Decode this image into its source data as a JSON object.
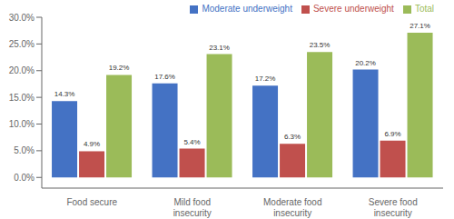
{
  "chart_data": {
    "type": "bar",
    "categories": [
      "Food secure",
      "Mild food\ninsecurity",
      "Moderate food\ninsecurity",
      "Severe food\ninsecurity"
    ],
    "series": [
      {
        "name": "Moderate underweight",
        "color": "#4472C4",
        "values": [
          0.143,
          0.176,
          0.172,
          0.202
        ],
        "value_labels": [
          "14.3%",
          "17.6%",
          "17.2%",
          "20.2%"
        ]
      },
      {
        "name": "Severe underweight",
        "color": "#C0504D",
        "values": [
          0.049,
          0.054,
          0.063,
          0.069
        ],
        "value_labels": [
          "4.9%",
          "5.4%",
          "6.3%",
          "6.9%"
        ]
      },
      {
        "name": "Total",
        "color": "#9BBB59",
        "values": [
          0.192,
          0.231,
          0.235,
          0.271
        ],
        "value_labels": [
          "19.2%",
          "23.1%",
          "23.5%",
          "27.1%"
        ]
      }
    ],
    "ylim": [
      -0.02,
      0.3
    ],
    "yticks": [
      {
        "value": 0.0,
        "label": "0.0%"
      },
      {
        "value": 0.05,
        "label": "5.0%"
      },
      {
        "value": 0.1,
        "label": "10.0%"
      },
      {
        "value": 0.15,
        "label": "15.0%"
      },
      {
        "value": 0.2,
        "label": "20.0%"
      },
      {
        "value": 0.25,
        "label": "25.0%"
      },
      {
        "value": 0.3,
        "label": "30.0%"
      }
    ],
    "legend": "upper right",
    "data_labels": true,
    "grid": false
  }
}
